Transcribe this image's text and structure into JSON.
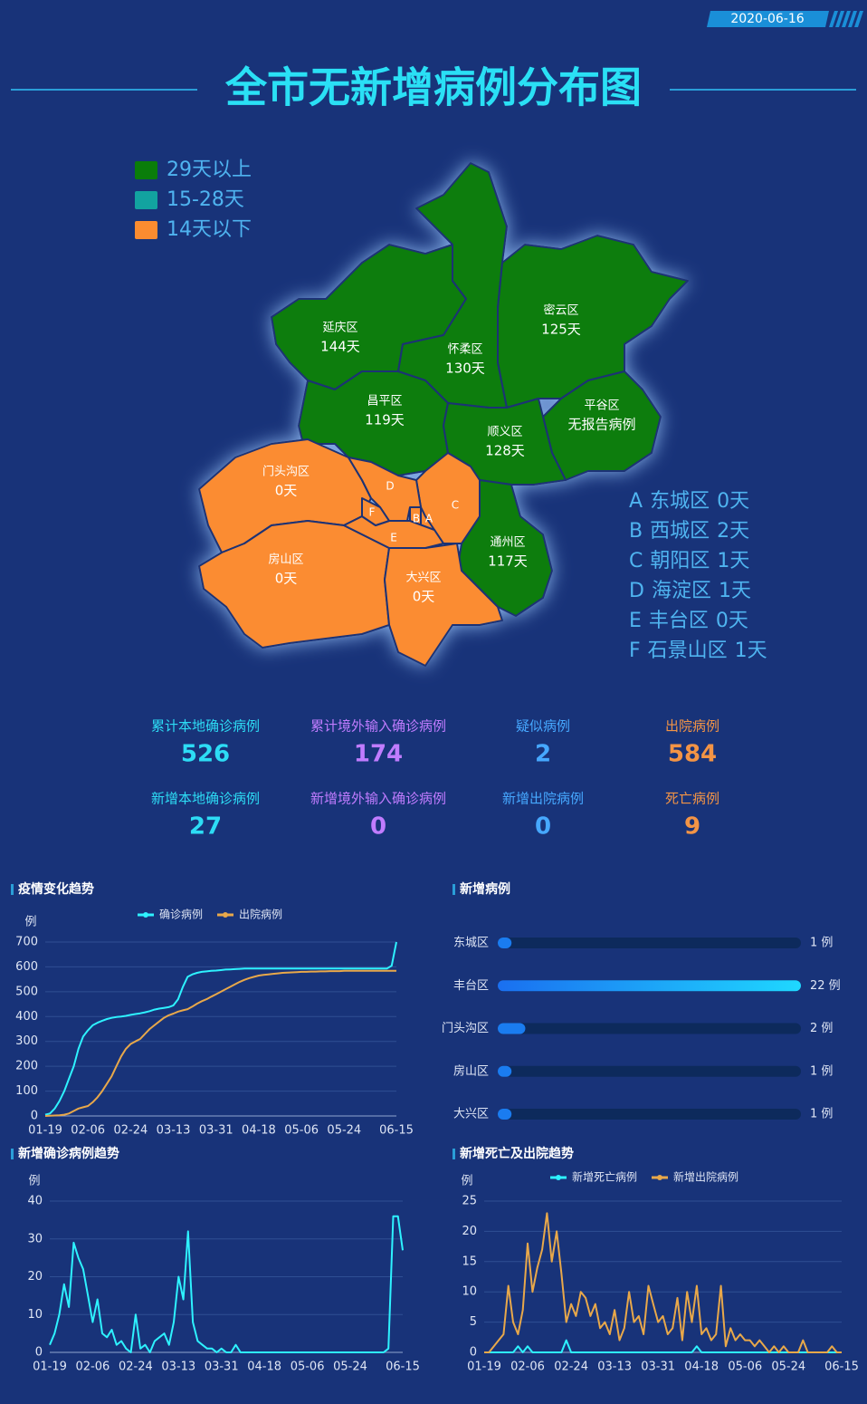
{
  "header": {
    "date": "2020-06-16",
    "title": "全市无新增病例分布图"
  },
  "map": {
    "legend": [
      {
        "label": "29天以上",
        "color": "#0a7d0a"
      },
      {
        "label": "15-28天",
        "color": "#12a3a0"
      },
      {
        "label": "14天以下",
        "color": "#fb8c30"
      }
    ],
    "districts": [
      {
        "name": "延庆区",
        "days": "144天",
        "color": "#0a7d0a"
      },
      {
        "name": "怀柔区",
        "days": "130天",
        "color": "#0a7d0a"
      },
      {
        "name": "密云区",
        "days": "125天",
        "color": "#0a7d0a"
      },
      {
        "name": "平谷区",
        "days": "无报告病例",
        "color": "#0a7d0a"
      },
      {
        "name": "昌平区",
        "days": "119天",
        "color": "#0a7d0a"
      },
      {
        "name": "顺义区",
        "days": "128天",
        "color": "#0a7d0a"
      },
      {
        "name": "通州区",
        "days": "117天",
        "color": "#0a7d0a"
      },
      {
        "name": "门头沟区",
        "days": "0天",
        "color": "#fb8c30"
      },
      {
        "name": "房山区",
        "days": "0天",
        "color": "#fb8c30"
      },
      {
        "name": "大兴区",
        "days": "0天",
        "color": "#fb8c30"
      }
    ],
    "key": [
      {
        "letter": "A",
        "name": "东城区",
        "days": "0天",
        "color": "#fb8c30"
      },
      {
        "letter": "B",
        "name": "西城区",
        "days": "2天",
        "color": "#fb8c30"
      },
      {
        "letter": "C",
        "name": "朝阳区",
        "days": "1天",
        "color": "#fb8c30"
      },
      {
        "letter": "D",
        "name": "海淀区",
        "days": "1天",
        "color": "#fb8c30"
      },
      {
        "letter": "E",
        "name": "丰台区",
        "days": "0天",
        "color": "#fb8c30"
      },
      {
        "letter": "F",
        "name": "石景山区",
        "days": "1天",
        "color": "#fb8c30"
      }
    ]
  },
  "stats": [
    {
      "label": "累计本地确诊病例",
      "value": 526,
      "color": "#2ddcf5"
    },
    {
      "label": "累计境外输入确诊病例",
      "value": 174,
      "color": "#c07cff"
    },
    {
      "label": "疑似病例",
      "value": 2,
      "color": "#46a8ff"
    },
    {
      "label": "出院病例",
      "value": 584,
      "color": "#f39445"
    },
    {
      "label": "新增本地确诊病例",
      "value": 27,
      "color": "#2ddcf5"
    },
    {
      "label": "新增境外输入确诊病例",
      "value": 0,
      "color": "#c07cff"
    },
    {
      "label": "新增出院病例",
      "value": 0,
      "color": "#46a8ff"
    },
    {
      "label": "死亡病例",
      "value": 9,
      "color": "#f39445"
    }
  ],
  "chart_data": [
    {
      "type": "line",
      "title": "疫情变化趋势",
      "y_label": "例",
      "legend": true,
      "categories": [
        "01-19",
        null,
        null,
        null,
        null,
        null,
        null,
        null,
        null,
        "02-06",
        null,
        null,
        null,
        null,
        null,
        null,
        null,
        null,
        "02-24",
        null,
        null,
        null,
        null,
        null,
        null,
        null,
        null,
        "03-13",
        null,
        null,
        null,
        null,
        null,
        null,
        null,
        null,
        "03-31",
        null,
        null,
        null,
        null,
        null,
        null,
        null,
        null,
        "04-18",
        null,
        null,
        null,
        null,
        null,
        null,
        null,
        null,
        "05-06",
        null,
        null,
        null,
        null,
        null,
        null,
        null,
        null,
        "05-24",
        null,
        null,
        null,
        null,
        null,
        null,
        null,
        null,
        null,
        null,
        "06-15"
      ],
      "ylim": [
        0,
        700
      ],
      "yticks": [
        0,
        100,
        200,
        300,
        400,
        500,
        600,
        700
      ],
      "series": [
        {
          "name": "确诊病例",
          "color": "#2ef2ff",
          "values": [
            5,
            10,
            30,
            60,
            100,
            150,
            200,
            270,
            320,
            345,
            365,
            375,
            383,
            390,
            395,
            398,
            400,
            403,
            407,
            410,
            413,
            417,
            422,
            428,
            432,
            435,
            438,
            445,
            470,
            520,
            560,
            570,
            576,
            580,
            582,
            584,
            585,
            587,
            589,
            590,
            591,
            592,
            593,
            593,
            593,
            593,
            593,
            593,
            593,
            593,
            593,
            593,
            593,
            593,
            593,
            593,
            593,
            593,
            593,
            593,
            593,
            593,
            593,
            593,
            593,
            593,
            593,
            593,
            593,
            593,
            593,
            593,
            593,
            605,
            700
          ]
        },
        {
          "name": "出院病例",
          "color": "#e8a84a",
          "values": [
            0,
            1,
            2,
            3,
            5,
            10,
            20,
            30,
            35,
            40,
            55,
            75,
            100,
            130,
            160,
            200,
            240,
            270,
            290,
            300,
            310,
            330,
            350,
            365,
            380,
            395,
            405,
            412,
            420,
            425,
            430,
            440,
            452,
            462,
            470,
            480,
            490,
            500,
            510,
            520,
            530,
            540,
            548,
            555,
            560,
            565,
            568,
            570,
            572,
            574,
            576,
            577,
            578,
            579,
            580,
            580,
            581,
            581,
            582,
            582,
            583,
            583,
            583,
            584,
            584,
            584,
            584,
            584,
            584,
            584,
            584,
            584,
            584,
            584,
            584
          ]
        }
      ]
    },
    {
      "type": "bar",
      "title": "新增病例",
      "horizontal": true,
      "categories": [
        "东城区",
        "丰台区",
        "门头沟区",
        "房山区",
        "大兴区"
      ],
      "values": [
        1,
        22,
        2,
        1,
        1
      ],
      "value_labels": [
        "1 例",
        "22 例",
        "2 例",
        "1 例",
        "1 例"
      ],
      "xlim": [
        0,
        22
      ],
      "color": "#1a7cf0"
    },
    {
      "type": "line",
      "title": "新增确诊病例趋势",
      "y_label": "例",
      "legend": false,
      "categories": [
        "01-19",
        null,
        null,
        null,
        null,
        null,
        null,
        null,
        null,
        "02-06",
        null,
        null,
        null,
        null,
        null,
        null,
        null,
        null,
        "02-24",
        null,
        null,
        null,
        null,
        null,
        null,
        null,
        null,
        "03-13",
        null,
        null,
        null,
        null,
        null,
        null,
        null,
        null,
        "03-31",
        null,
        null,
        null,
        null,
        null,
        null,
        null,
        null,
        "04-18",
        null,
        null,
        null,
        null,
        null,
        null,
        null,
        null,
        "05-06",
        null,
        null,
        null,
        null,
        null,
        null,
        null,
        null,
        "05-24",
        null,
        null,
        null,
        null,
        null,
        null,
        null,
        null,
        null,
        null,
        "06-15"
      ],
      "ylim": [
        0,
        40
      ],
      "yticks": [
        0,
        10,
        20,
        30,
        40
      ],
      "series": [
        {
          "name": "新增确诊病例",
          "color": "#2ef2ff",
          "values": [
            2,
            5,
            10,
            18,
            12,
            29,
            25,
            22,
            15,
            8,
            14,
            5,
            4,
            6,
            2,
            3,
            1,
            0,
            10,
            1,
            2,
            0,
            3,
            4,
            5,
            2,
            8,
            20,
            14,
            32,
            8,
            3,
            2,
            1,
            1,
            0,
            1,
            0,
            0,
            2,
            0,
            0,
            0,
            0,
            0,
            0,
            0,
            0,
            0,
            0,
            0,
            0,
            0,
            0,
            0,
            0,
            0,
            0,
            0,
            0,
            0,
            0,
            0,
            0,
            0,
            0,
            0,
            0,
            0,
            0,
            0,
            1,
            36,
            36,
            27
          ]
        }
      ]
    },
    {
      "type": "line",
      "title": "新增死亡及出院趋势",
      "y_label": "例",
      "legend": true,
      "categories": [
        "01-19",
        null,
        null,
        null,
        null,
        null,
        null,
        null,
        null,
        "02-06",
        null,
        null,
        null,
        null,
        null,
        null,
        null,
        null,
        "02-24",
        null,
        null,
        null,
        null,
        null,
        null,
        null,
        null,
        "03-13",
        null,
        null,
        null,
        null,
        null,
        null,
        null,
        null,
        "03-31",
        null,
        null,
        null,
        null,
        null,
        null,
        null,
        null,
        "04-18",
        null,
        null,
        null,
        null,
        null,
        null,
        null,
        null,
        "05-06",
        null,
        null,
        null,
        null,
        null,
        null,
        null,
        null,
        "05-24",
        null,
        null,
        null,
        null,
        null,
        null,
        null,
        null,
        null,
        null,
        "06-15"
      ],
      "ylim": [
        0,
        25
      ],
      "yticks": [
        0,
        5,
        10,
        15,
        20,
        25
      ],
      "series": [
        {
          "name": "新增死亡病例",
          "color": "#2ef2ff",
          "values": [
            0,
            0,
            0,
            0,
            0,
            0,
            0,
            1,
            0,
            1,
            0,
            0,
            0,
            0,
            0,
            0,
            0,
            2,
            0,
            0,
            0,
            0,
            0,
            0,
            0,
            0,
            0,
            0,
            0,
            0,
            0,
            0,
            0,
            0,
            0,
            0,
            0,
            0,
            0,
            0,
            0,
            0,
            0,
            0,
            1,
            0,
            0,
            0,
            0,
            0,
            0,
            0,
            0,
            0,
            0,
            0,
            0,
            0,
            0,
            0,
            0,
            0,
            0,
            0,
            0,
            0,
            0,
            0,
            0,
            0,
            0,
            0,
            0,
            0,
            0
          ]
        },
        {
          "name": "新增出院病例",
          "color": "#e8a84a",
          "values": [
            0,
            0,
            1,
            2,
            3,
            11,
            5,
            3,
            7,
            18,
            10,
            14,
            17,
            23,
            15,
            20,
            13,
            5,
            8,
            6,
            10,
            9,
            6,
            8,
            4,
            5,
            3,
            7,
            2,
            4,
            10,
            5,
            6,
            3,
            11,
            8,
            5,
            6,
            3,
            4,
            9,
            2,
            10,
            5,
            11,
            3,
            4,
            2,
            3,
            11,
            1,
            4,
            2,
            3,
            2,
            2,
            1,
            2,
            1,
            0,
            1,
            0,
            1,
            0,
            0,
            0,
            2,
            0,
            0,
            0,
            0,
            0,
            1,
            0,
            0
          ]
        }
      ]
    }
  ]
}
